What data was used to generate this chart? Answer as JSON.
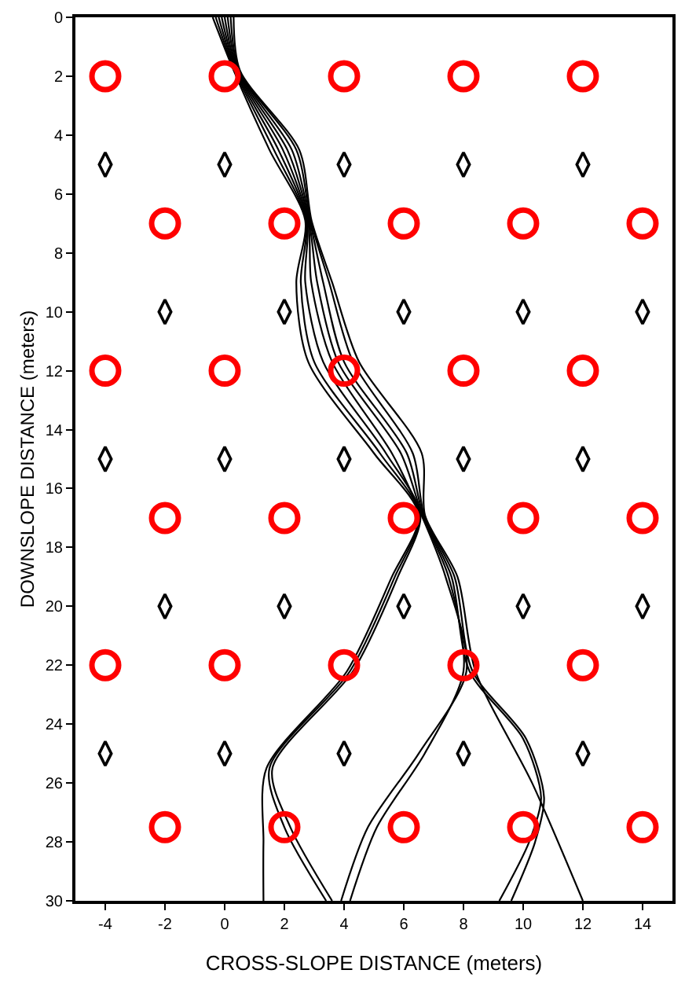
{
  "chart_data": {
    "type": "scatter",
    "xlabel": "CROSS-SLOPE DISTANCE (meters)",
    "ylabel": "DOWNSLOPE DISTANCE (meters)",
    "xlim": [
      -5,
      15
    ],
    "xticks": [
      -4,
      -2,
      0,
      2,
      4,
      6,
      8,
      10,
      12,
      14
    ],
    "ylim": [
      30,
      0
    ],
    "yticks": [
      0,
      2,
      4,
      6,
      8,
      10,
      12,
      14,
      16,
      18,
      20,
      22,
      24,
      26,
      28,
      30
    ],
    "series": [
      {
        "marker": "circle",
        "color": "#ff0000",
        "x": [
          -4,
          0,
          4,
          8,
          12,
          -2,
          2,
          6,
          10,
          14,
          -4,
          0,
          4,
          8,
          12,
          -2,
          2,
          6,
          10,
          14,
          -4,
          0,
          4,
          8,
          12,
          -2,
          2,
          6,
          10,
          14
        ],
        "values": [
          2,
          2,
          2,
          2,
          2,
          7,
          7,
          7,
          7,
          7,
          12,
          12,
          12,
          12,
          12,
          17,
          17,
          17,
          17,
          17,
          22,
          22,
          22,
          22,
          22,
          27.5,
          27.5,
          27.5,
          27.5,
          27.5
        ]
      },
      {
        "marker": "diamond",
        "color": "#000000",
        "x": [
          -4,
          0,
          4,
          8,
          12,
          -2,
          2,
          6,
          10,
          14,
          -4,
          0,
          4,
          8,
          12,
          -2,
          2,
          6,
          10,
          14,
          -4,
          0,
          4,
          8,
          12
        ],
        "values": [
          5,
          5,
          5,
          5,
          5,
          10,
          10,
          10,
          10,
          10,
          15,
          15,
          15,
          15,
          15,
          20,
          20,
          20,
          20,
          20,
          25,
          25,
          25,
          25,
          25
        ]
      },
      {
        "type": "line",
        "color": "#000000",
        "x": [
          -0.4,
          0.3,
          1.5,
          2.7,
          2.4,
          2.8,
          5.0,
          6.5,
          5.6,
          4.1,
          1.4,
          1.3,
          1.3
        ],
        "values": [
          0,
          1.8,
          4.5,
          6.9,
          9,
          11.7,
          14.8,
          16.9,
          19,
          22.2,
          25.5,
          28,
          30
        ]
      },
      {
        "type": "line",
        "color": "#000000",
        "x": [
          -0.3,
          0.33,
          1.65,
          2.73,
          2.55,
          3.0,
          5.2,
          6.53,
          5.7,
          4.2,
          1.5,
          2.0,
          3.4
        ],
        "values": [
          0,
          1.8,
          4.5,
          6.9,
          9,
          11.7,
          14.8,
          16.9,
          19,
          22.2,
          25.5,
          27.5,
          30
        ]
      },
      {
        "type": "line",
        "color": "#000000",
        "x": [
          -0.2,
          0.36,
          1.8,
          2.76,
          2.7,
          3.3,
          5.4,
          6.56,
          5.8,
          4.3,
          1.6,
          2.2,
          3.6
        ],
        "values": [
          0,
          1.8,
          4.5,
          6.9,
          9,
          11.7,
          14.8,
          16.9,
          19,
          22.2,
          25.5,
          27.5,
          30
        ]
      },
      {
        "type": "line",
        "color": "#000000",
        "x": [
          -0.1,
          0.39,
          1.95,
          2.79,
          2.9,
          3.6,
          5.6,
          6.59,
          7.4,
          8.1,
          6.5,
          4.8,
          3.9
        ],
        "values": [
          0,
          1.8,
          4.5,
          6.9,
          9,
          11.7,
          14.8,
          16.9,
          19,
          22.2,
          25,
          27.5,
          30
        ]
      },
      {
        "type": "line",
        "color": "#000000",
        "x": [
          0.0,
          0.42,
          2.1,
          2.82,
          3.1,
          3.8,
          5.9,
          6.62,
          7.5,
          8.0,
          6.7,
          5.1,
          4.2
        ],
        "values": [
          0,
          1.8,
          4.5,
          6.9,
          9,
          11.7,
          14.8,
          16.9,
          19,
          22.2,
          25,
          27.5,
          30
        ]
      },
      {
        "type": "line",
        "color": "#000000",
        "x": [
          0.1,
          0.45,
          2.25,
          2.85,
          3.3,
          4.0,
          6.1,
          6.65,
          7.6,
          8.2,
          10.0,
          10.6,
          10.2,
          9.2
        ],
        "values": [
          0,
          1.8,
          4.5,
          6.9,
          9,
          11.7,
          14.8,
          16.9,
          19,
          22.2,
          24.5,
          26.5,
          28,
          30
        ]
      },
      {
        "type": "line",
        "color": "#000000",
        "x": [
          0.2,
          0.48,
          2.4,
          2.88,
          3.5,
          4.3,
          6.3,
          6.68,
          7.7,
          8.3,
          10.1,
          10.7,
          10.4,
          9.6
        ],
        "values": [
          0,
          1.8,
          4.5,
          6.9,
          9,
          11.7,
          14.8,
          16.9,
          19,
          22.2,
          24.5,
          26.5,
          28,
          30
        ]
      },
      {
        "type": "line",
        "color": "#000000",
        "x": [
          0.3,
          0.51,
          2.5,
          2.91,
          3.6,
          4.5,
          6.6,
          6.71,
          7.8,
          8.4,
          10.3,
          12.0
        ],
        "values": [
          0,
          1.8,
          4.5,
          6.9,
          9,
          11.7,
          14.8,
          16.9,
          19,
          22.2,
          26,
          30
        ]
      }
    ]
  }
}
